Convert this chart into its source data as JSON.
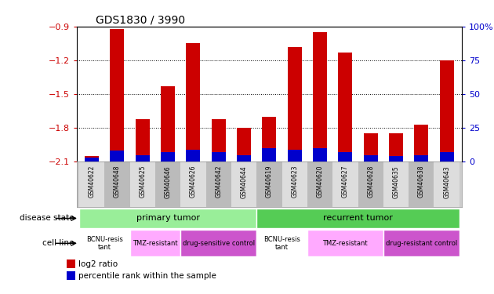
{
  "title": "GDS1830 / 3990",
  "samples": [
    "GSM40622",
    "GSM40648",
    "GSM40625",
    "GSM40646",
    "GSM40626",
    "GSM40642",
    "GSM40644",
    "GSM40619",
    "GSM40623",
    "GSM40620",
    "GSM40627",
    "GSM40628",
    "GSM40635",
    "GSM40638",
    "GSM40643"
  ],
  "log2_ratio": [
    -2.05,
    -0.92,
    -1.72,
    -1.43,
    -1.05,
    -1.72,
    -1.8,
    -1.7,
    -1.08,
    -0.95,
    -1.13,
    -1.85,
    -1.85,
    -1.77,
    -1.2
  ],
  "percentile": [
    3,
    8,
    5,
    7,
    9,
    7,
    5,
    10,
    9,
    10,
    7,
    5,
    4,
    5,
    7
  ],
  "bar_color": "#cc0000",
  "blue_color": "#0000cc",
  "ylim_left": [
    -2.1,
    -0.9
  ],
  "ylim_right": [
    0,
    100
  ],
  "yticks_left": [
    -2.1,
    -1.8,
    -1.5,
    -1.2,
    -0.9
  ],
  "yticks_right": [
    0,
    25,
    50,
    75,
    100
  ],
  "disease_state_groups": [
    {
      "label": "primary tumor",
      "start": 0,
      "end": 7,
      "color": "#99ee99"
    },
    {
      "label": "recurrent tumor",
      "start": 7,
      "end": 15,
      "color": "#55cc55"
    }
  ],
  "cell_line_groups": [
    {
      "label": "BCNU-resis\ntant",
      "start": 0,
      "end": 2,
      "color": "#ffffff"
    },
    {
      "label": "TMZ-resistant",
      "start": 2,
      "end": 4,
      "color": "#ffaaff"
    },
    {
      "label": "drug-sensitive control",
      "start": 4,
      "end": 7,
      "color": "#cc55cc"
    },
    {
      "label": "BCNU-resis\ntant",
      "start": 7,
      "end": 9,
      "color": "#ffffff"
    },
    {
      "label": "TMZ-resistant",
      "start": 9,
      "end": 12,
      "color": "#ffaaff"
    },
    {
      "label": "drug-resistant control",
      "start": 12,
      "end": 15,
      "color": "#cc55cc"
    }
  ],
  "label_color_left": "#cc0000",
  "label_color_right": "#0000cc",
  "sample_area_color": "#cccccc",
  "border_color": "#888888"
}
